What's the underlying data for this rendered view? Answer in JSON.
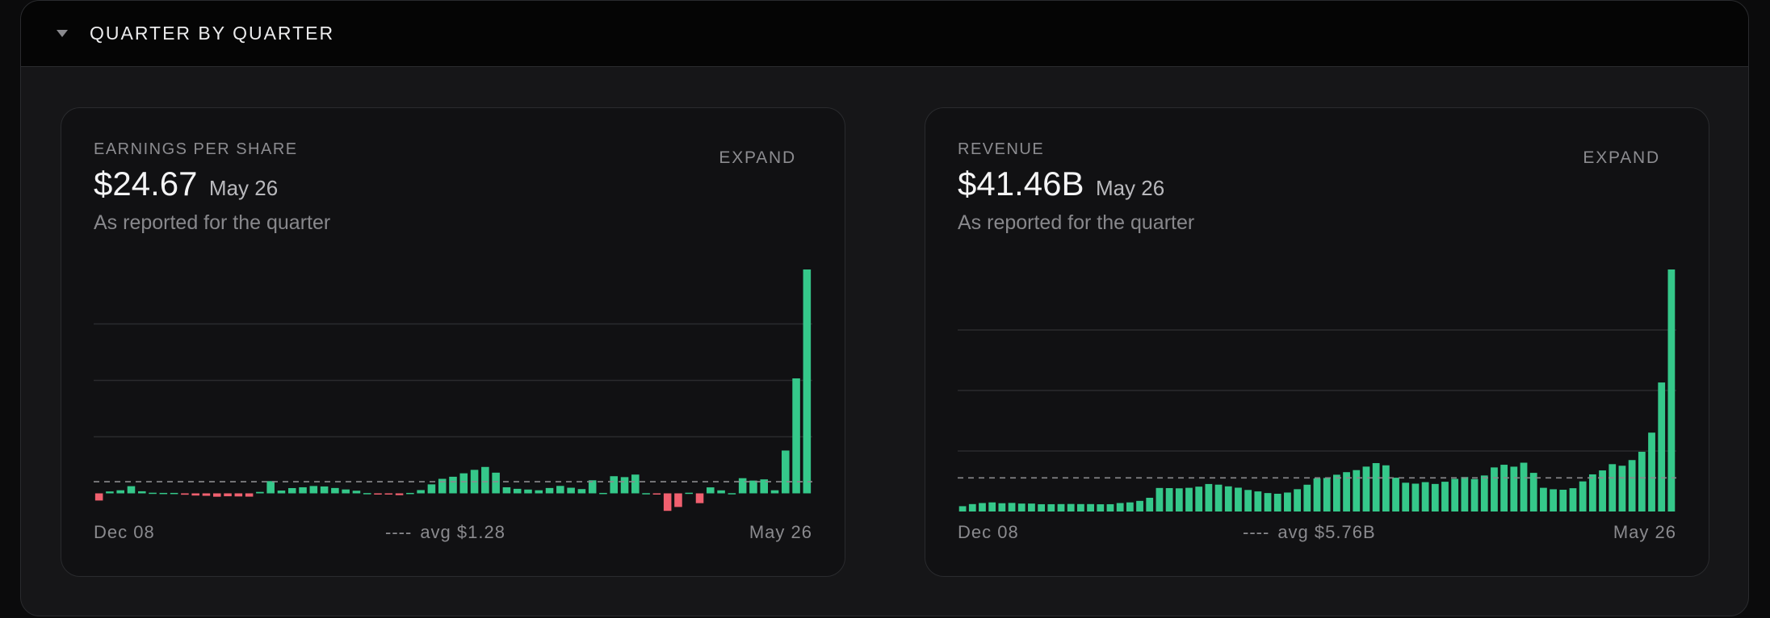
{
  "section": {
    "title": "QUARTER BY QUARTER"
  },
  "colors": {
    "positive": "#35c88a",
    "negative": "#f0606f",
    "grid": "#2a2b2e",
    "avg_line": "#8a8a8e"
  },
  "icons": {
    "collapse": "caret-down-icon"
  },
  "cards": [
    {
      "label": "EARNINGS PER SHARE",
      "expand_label": "EXPAND",
      "value": "$24.67",
      "date": "May 26",
      "subtitle": "As reported for the quarter",
      "x_start": "Dec 08",
      "x_end": "May 26",
      "avg_dash": "----",
      "avg_text": "avg $1.28"
    },
    {
      "label": "REVENUE",
      "expand_label": "EXPAND",
      "value": "$41.46B",
      "date": "May 26",
      "subtitle": "As reported for the quarter",
      "x_start": "Dec 08",
      "x_end": "May 26",
      "avg_dash": "----",
      "avg_text": "avg $5.76B"
    }
  ],
  "chart_data": [
    {
      "type": "bar",
      "title": "EARNINGS PER SHARE",
      "x_range": [
        "Dec 08",
        "May 26"
      ],
      "values": [
        -0.79,
        0.21,
        0.34,
        0.79,
        0.23,
        0.07,
        0.05,
        0.05,
        -0.15,
        -0.24,
        -0.27,
        -0.37,
        -0.32,
        -0.34,
        -0.36,
        0.16,
        1.35,
        0.31,
        0.58,
        0.67,
        0.81,
        0.76,
        0.59,
        0.43,
        0.29,
        0.03,
        -0.05,
        -0.13,
        -0.2,
        0.05,
        0.36,
        0.99,
        1.6,
        1.83,
        2.21,
        2.59,
        2.91,
        2.28,
        0.67,
        0.5,
        0.42,
        0.34,
        0.59,
        0.82,
        0.62,
        0.47,
        1.44,
        0.05,
        1.89,
        1.79,
        2.07,
        0.02,
        -0.1,
        -1.93,
        -1.5,
        0.07,
        -1.08,
        0.66,
        0.33,
        0.02,
        1.67,
        1.41,
        1.54,
        0.34,
        4.72,
        12.67,
        24.67
      ],
      "avg": 1.28,
      "ylim": [
        -2,
        24.67
      ],
      "grid_values": [
        6.23,
        12.45,
        18.67
      ]
    },
    {
      "type": "bar",
      "title": "REVENUE",
      "x_range": [
        "Dec 08",
        "May 26"
      ],
      "values": [
        0.91,
        1.27,
        1.45,
        1.56,
        1.42,
        1.47,
        1.36,
        1.36,
        1.25,
        1.25,
        1.27,
        1.29,
        1.27,
        1.27,
        1.24,
        1.25,
        1.45,
        1.56,
        1.82,
        2.35,
        4.03,
        4.01,
        3.97,
        4.06,
        4.26,
        4.71,
        4.6,
        4.31,
        4.08,
        3.69,
        3.44,
        3.16,
        3.04,
        3.25,
        3.82,
        4.59,
        5.66,
        5.75,
        6.3,
        6.74,
        7.09,
        7.69,
        8.29,
        7.91,
        5.79,
        4.93,
        4.77,
        5.03,
        4.72,
        5.1,
        5.59,
        5.91,
        5.56,
        6.17,
        7.55,
        8.01,
        7.68,
        8.36,
        6.62,
        4.06,
        3.81,
        3.73,
        3.99,
        5.16,
        6.36,
        7.04,
        8.11,
        7.84,
        8.81,
        10.23,
        13.51,
        22.1,
        41.46
      ],
      "avg": 5.76,
      "ylim": [
        0,
        41.46
      ],
      "grid_values": [
        10.37,
        20.73,
        31.1
      ]
    }
  ]
}
